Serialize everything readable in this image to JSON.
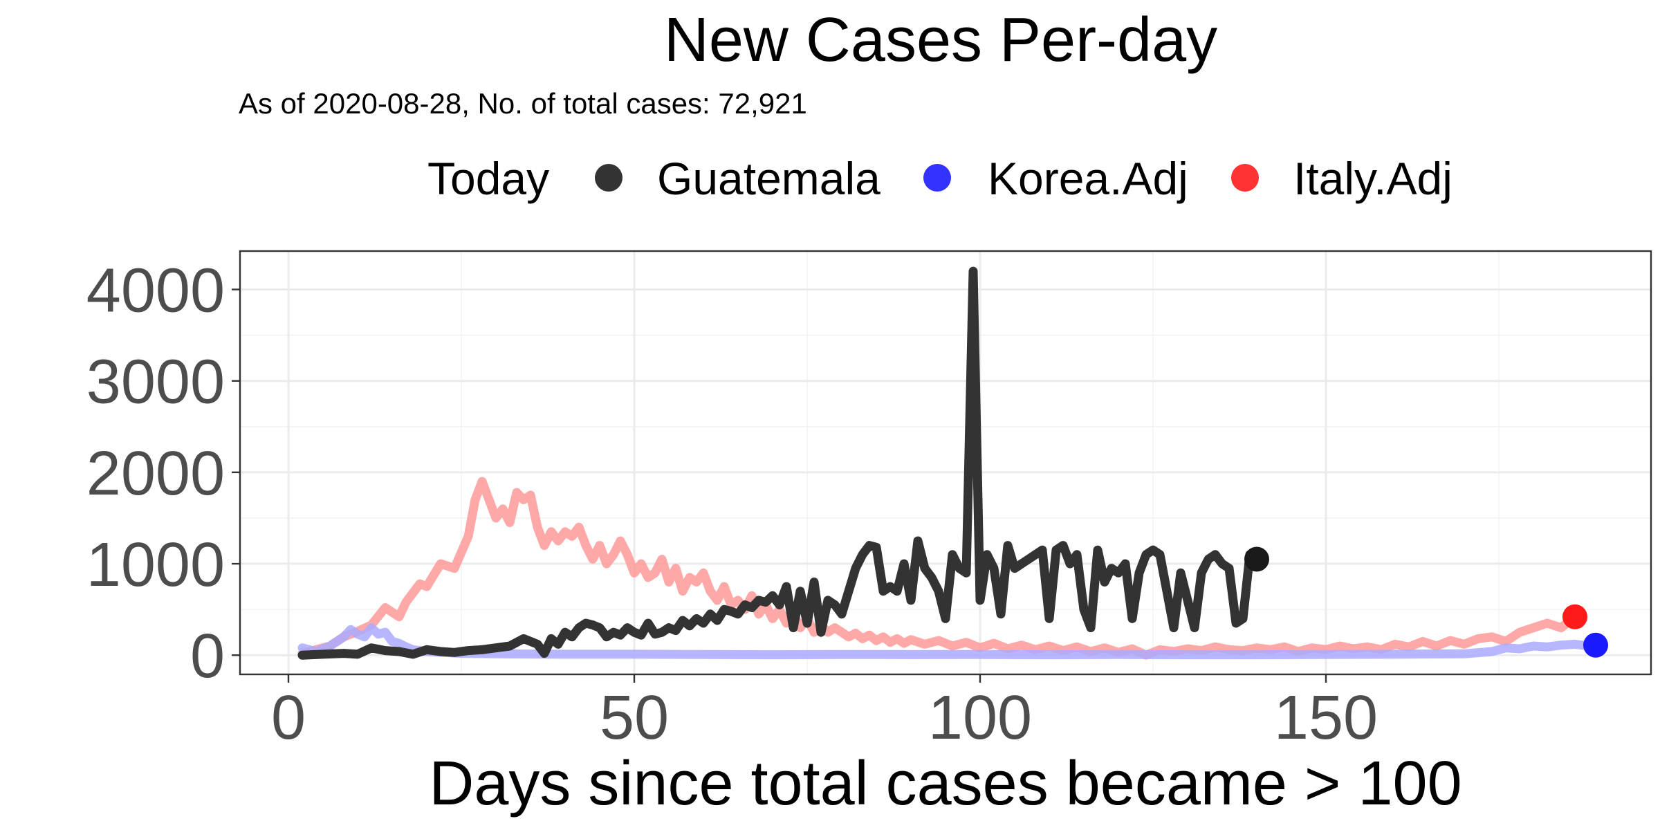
{
  "chart_data": {
    "type": "line",
    "title": "New Cases Per-day",
    "subtitle": "As of 2020-08-28, No. of total cases: 72,921",
    "xlabel": "Days since total cases became > 100",
    "ylabel": "",
    "xlim": [
      -7,
      197
    ],
    "ylim": [
      -210,
      4420
    ],
    "x_ticks": [
      0,
      50,
      100,
      150
    ],
    "y_ticks": [
      0,
      1000,
      2000,
      3000,
      4000
    ],
    "x_tick_labels": [
      "0",
      "50",
      "100",
      "150"
    ],
    "y_tick_labels": [
      "0",
      "1000",
      "2000",
      "3000",
      "4000"
    ],
    "grid": true,
    "legend": {
      "title": "Today",
      "position": "top",
      "items": [
        {
          "label": "Guatemala",
          "color": "#000000"
        },
        {
          "label": "Korea.Adj",
          "color": "#0000ff"
        },
        {
          "label": "Italy.Adj",
          "color": "#ff0000"
        }
      ]
    },
    "series": [
      {
        "name": "Italy.Adj",
        "color": "#ff9999",
        "points": [
          [
            2,
            20
          ],
          [
            4,
            60
          ],
          [
            6,
            100
          ],
          [
            8,
            200
          ],
          [
            10,
            260
          ],
          [
            12,
            330
          ],
          [
            14,
            520
          ],
          [
            16,
            420
          ],
          [
            17,
            580
          ],
          [
            19,
            780
          ],
          [
            20,
            750
          ],
          [
            22,
            1000
          ],
          [
            24,
            950
          ],
          [
            26,
            1300
          ],
          [
            27,
            1700
          ],
          [
            28,
            1900
          ],
          [
            29,
            1700
          ],
          [
            30,
            1500
          ],
          [
            31,
            1600
          ],
          [
            32,
            1450
          ],
          [
            33,
            1780
          ],
          [
            34,
            1700
          ],
          [
            35,
            1750
          ],
          [
            36,
            1400
          ],
          [
            37,
            1200
          ],
          [
            38,
            1350
          ],
          [
            39,
            1250
          ],
          [
            40,
            1350
          ],
          [
            41,
            1300
          ],
          [
            42,
            1400
          ],
          [
            43,
            1200
          ],
          [
            44,
            1050
          ],
          [
            45,
            1200
          ],
          [
            46,
            1000
          ],
          [
            47,
            1100
          ],
          [
            48,
            1250
          ],
          [
            49,
            1100
          ],
          [
            50,
            900
          ],
          [
            51,
            1000
          ],
          [
            52,
            850
          ],
          [
            53,
            900
          ],
          [
            54,
            1050
          ],
          [
            55,
            800
          ],
          [
            56,
            950
          ],
          [
            57,
            700
          ],
          [
            58,
            850
          ],
          [
            59,
            800
          ],
          [
            60,
            900
          ],
          [
            61,
            700
          ],
          [
            62,
            600
          ],
          [
            63,
            750
          ],
          [
            64,
            550
          ],
          [
            65,
            600
          ],
          [
            66,
            500
          ],
          [
            67,
            650
          ],
          [
            68,
            450
          ],
          [
            69,
            550
          ],
          [
            70,
            400
          ],
          [
            71,
            500
          ],
          [
            72,
            350
          ],
          [
            73,
            450
          ],
          [
            74,
            300
          ],
          [
            75,
            400
          ],
          [
            76,
            250
          ],
          [
            77,
            330
          ],
          [
            78,
            250
          ],
          [
            79,
            300
          ],
          [
            80,
            250
          ],
          [
            81,
            200
          ],
          [
            82,
            240
          ],
          [
            83,
            180
          ],
          [
            84,
            220
          ],
          [
            85,
            160
          ],
          [
            86,
            200
          ],
          [
            87,
            140
          ],
          [
            88,
            180
          ],
          [
            89,
            130
          ],
          [
            90,
            170
          ],
          [
            92,
            120
          ],
          [
            94,
            160
          ],
          [
            96,
            100
          ],
          [
            98,
            140
          ],
          [
            100,
            80
          ],
          [
            102,
            130
          ],
          [
            104,
            70
          ],
          [
            106,
            110
          ],
          [
            108,
            60
          ],
          [
            110,
            100
          ],
          [
            112,
            50
          ],
          [
            114,
            90
          ],
          [
            116,
            40
          ],
          [
            118,
            80
          ],
          [
            120,
            30
          ],
          [
            122,
            70
          ],
          [
            124,
            0
          ],
          [
            126,
            60
          ],
          [
            128,
            40
          ],
          [
            130,
            70
          ],
          [
            132,
            50
          ],
          [
            134,
            90
          ],
          [
            136,
            60
          ],
          [
            138,
            50
          ],
          [
            140,
            80
          ],
          [
            142,
            60
          ],
          [
            144,
            90
          ],
          [
            146,
            40
          ],
          [
            148,
            80
          ],
          [
            150,
            60
          ],
          [
            152,
            100
          ],
          [
            154,
            70
          ],
          [
            156,
            90
          ],
          [
            158,
            60
          ],
          [
            160,
            120
          ],
          [
            162,
            90
          ],
          [
            164,
            150
          ],
          [
            166,
            100
          ],
          [
            168,
            160
          ],
          [
            170,
            120
          ],
          [
            172,
            180
          ],
          [
            174,
            200
          ],
          [
            176,
            150
          ],
          [
            178,
            250
          ],
          [
            180,
            300
          ],
          [
            182,
            350
          ],
          [
            184,
            300
          ],
          [
            186,
            420
          ]
        ]
      },
      {
        "name": "Korea.Adj",
        "color": "#aaaaff",
        "points": [
          [
            2,
            80
          ],
          [
            4,
            40
          ],
          [
            6,
            100
          ],
          [
            8,
            200
          ],
          [
            9,
            280
          ],
          [
            10,
            230
          ],
          [
            11,
            200
          ],
          [
            12,
            300
          ],
          [
            13,
            230
          ],
          [
            14,
            250
          ],
          [
            15,
            150
          ],
          [
            16,
            130
          ],
          [
            17,
            90
          ],
          [
            18,
            60
          ],
          [
            20,
            40
          ],
          [
            25,
            20
          ],
          [
            30,
            15
          ],
          [
            40,
            10
          ],
          [
            50,
            10
          ],
          [
            60,
            8
          ],
          [
            70,
            5
          ],
          [
            80,
            8
          ],
          [
            90,
            6
          ],
          [
            100,
            8
          ],
          [
            110,
            5
          ],
          [
            120,
            8
          ],
          [
            130,
            5
          ],
          [
            140,
            5
          ],
          [
            150,
            8
          ],
          [
            160,
            10
          ],
          [
            170,
            15
          ],
          [
            174,
            40
          ],
          [
            176,
            80
          ],
          [
            178,
            70
          ],
          [
            180,
            100
          ],
          [
            182,
            90
          ],
          [
            184,
            110
          ],
          [
            186,
            120
          ],
          [
            188,
            100
          ],
          [
            189,
            110
          ]
        ]
      },
      {
        "name": "Guatemala",
        "color": "#333333",
        "points": [
          [
            2,
            0
          ],
          [
            5,
            10
          ],
          [
            8,
            20
          ],
          [
            10,
            10
          ],
          [
            12,
            80
          ],
          [
            14,
            50
          ],
          [
            16,
            40
          ],
          [
            18,
            10
          ],
          [
            20,
            60
          ],
          [
            22,
            40
          ],
          [
            24,
            30
          ],
          [
            26,
            50
          ],
          [
            28,
            60
          ],
          [
            30,
            80
          ],
          [
            32,
            100
          ],
          [
            34,
            180
          ],
          [
            36,
            120
          ],
          [
            37,
            20
          ],
          [
            38,
            180
          ],
          [
            39,
            120
          ],
          [
            40,
            250
          ],
          [
            41,
            200
          ],
          [
            42,
            300
          ],
          [
            43,
            350
          ],
          [
            44,
            330
          ],
          [
            45,
            300
          ],
          [
            46,
            200
          ],
          [
            47,
            250
          ],
          [
            48,
            220
          ],
          [
            49,
            300
          ],
          [
            50,
            250
          ],
          [
            51,
            220
          ],
          [
            52,
            350
          ],
          [
            53,
            230
          ],
          [
            54,
            250
          ],
          [
            55,
            300
          ],
          [
            56,
            270
          ],
          [
            57,
            380
          ],
          [
            58,
            320
          ],
          [
            59,
            400
          ],
          [
            60,
            350
          ],
          [
            61,
            450
          ],
          [
            62,
            380
          ],
          [
            63,
            500
          ],
          [
            64,
            480
          ],
          [
            65,
            450
          ],
          [
            66,
            550
          ],
          [
            67,
            520
          ],
          [
            68,
            600
          ],
          [
            69,
            580
          ],
          [
            70,
            650
          ],
          [
            71,
            550
          ],
          [
            72,
            750
          ],
          [
            73,
            300
          ],
          [
            74,
            700
          ],
          [
            75,
            350
          ],
          [
            76,
            800
          ],
          [
            77,
            250
          ],
          [
            78,
            600
          ],
          [
            79,
            550
          ],
          [
            80,
            450
          ],
          [
            81,
            700
          ],
          [
            82,
            950
          ],
          [
            83,
            1100
          ],
          [
            84,
            1200
          ],
          [
            85,
            1180
          ],
          [
            86,
            700
          ],
          [
            87,
            750
          ],
          [
            88,
            700
          ],
          [
            89,
            1000
          ],
          [
            90,
            600
          ],
          [
            91,
            1250
          ],
          [
            92,
            950
          ],
          [
            93,
            850
          ],
          [
            94,
            700
          ],
          [
            95,
            400
          ],
          [
            96,
            1100
          ],
          [
            97,
            950
          ],
          [
            98,
            900
          ],
          [
            99,
            4200
          ],
          [
            100,
            600
          ],
          [
            101,
            1100
          ],
          [
            102,
            950
          ],
          [
            103,
            450
          ],
          [
            104,
            1200
          ],
          [
            105,
            950
          ],
          [
            106,
            1000
          ],
          [
            107,
            1050
          ],
          [
            108,
            1100
          ],
          [
            109,
            1150
          ],
          [
            110,
            400
          ],
          [
            111,
            1150
          ],
          [
            112,
            1200
          ],
          [
            113,
            1000
          ],
          [
            114,
            1100
          ],
          [
            115,
            500
          ],
          [
            116,
            300
          ],
          [
            117,
            1150
          ],
          [
            118,
            800
          ],
          [
            119,
            950
          ],
          [
            120,
            900
          ],
          [
            121,
            1000
          ],
          [
            122,
            400
          ],
          [
            123,
            900
          ],
          [
            124,
            1100
          ],
          [
            125,
            1150
          ],
          [
            126,
            1100
          ],
          [
            127,
            700
          ],
          [
            128,
            300
          ],
          [
            129,
            900
          ],
          [
            130,
            600
          ],
          [
            131,
            300
          ],
          [
            132,
            900
          ],
          [
            133,
            1050
          ],
          [
            134,
            1100
          ],
          [
            135,
            1000
          ],
          [
            136,
            950
          ],
          [
            137,
            350
          ],
          [
            138,
            400
          ],
          [
            139,
            1100
          ],
          [
            140,
            1050
          ]
        ]
      }
    ],
    "today_points": [
      {
        "name": "Guatemala",
        "x": 140,
        "y": 1050,
        "color": "#1a1a1a"
      },
      {
        "name": "Korea.Adj",
        "x": 189,
        "y": 110,
        "color": "#1a1aff"
      },
      {
        "name": "Italy.Adj",
        "x": 186,
        "y": 420,
        "color": "#ff1a1a"
      }
    ]
  }
}
